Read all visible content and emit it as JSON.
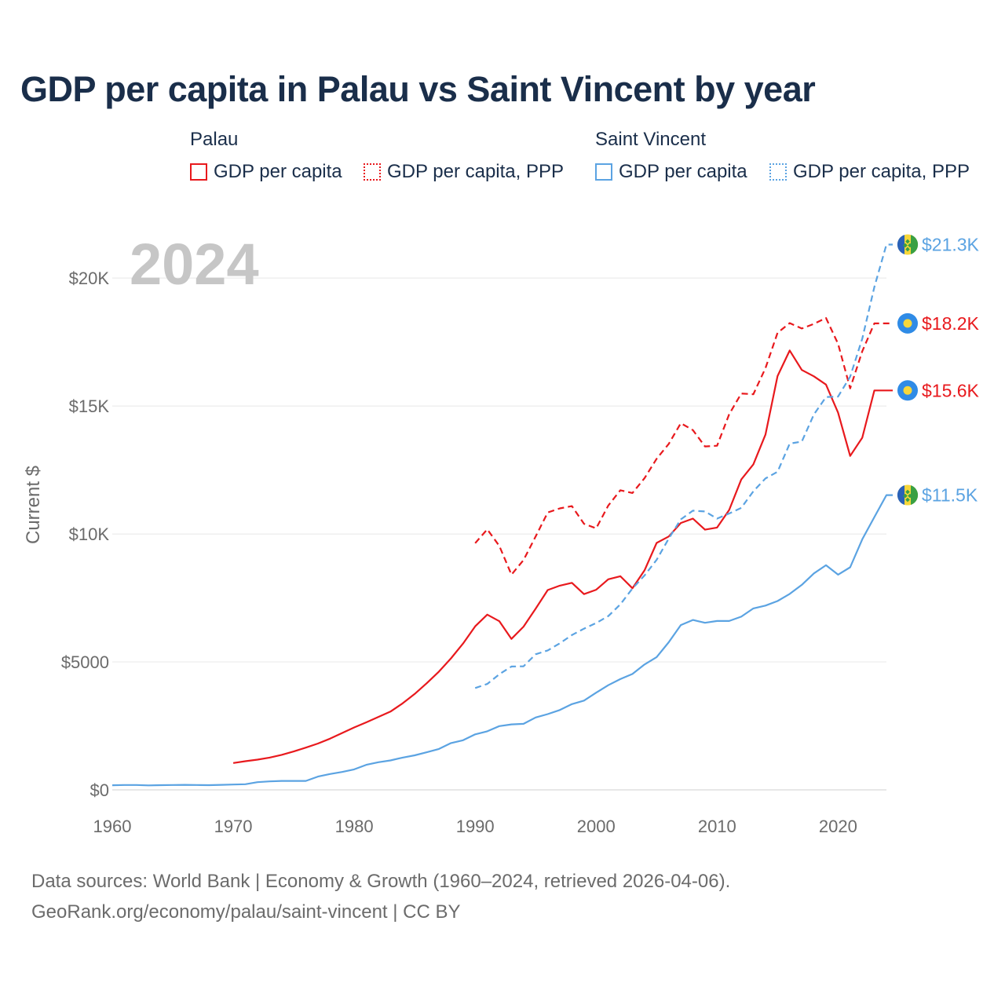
{
  "chart_data": {
    "type": "line",
    "title": "GDP per capita in Palau vs Saint Vincent by year",
    "year_badge": "2024",
    "ylabel": "Current $",
    "xlabel": "",
    "xlim": [
      1960,
      2024
    ],
    "ylim": [
      0,
      22000
    ],
    "x_ticks": [
      1960,
      1970,
      1980,
      1990,
      2000,
      2010,
      2020
    ],
    "y_ticks": [
      {
        "value": 0,
        "label": "$0"
      },
      {
        "value": 5000,
        "label": "$5000"
      },
      {
        "value": 10000,
        "label": "$10K"
      },
      {
        "value": 15000,
        "label": "$15K"
      },
      {
        "value": 20000,
        "label": "$20K"
      }
    ],
    "legend": {
      "groups": [
        {
          "name": "Palau",
          "items": [
            "GDP per capita",
            "GDP per capita, PPP"
          ]
        },
        {
          "name": "Saint Vincent",
          "items": [
            "GDP per capita",
            "GDP per capita, PPP"
          ]
        }
      ]
    },
    "colors": {
      "palau": "#e8191d",
      "saint_vincent": "#5ba3e2",
      "palau_flag_bg": "#2f8be6",
      "palau_flag_disc": "#f7d73a"
    },
    "series": [
      {
        "name": "Palau GDP per capita",
        "country": "palau",
        "style": "solid",
        "end_label": "$15.6K",
        "x": [
          1970,
          1971,
          1972,
          1973,
          1974,
          1975,
          1976,
          1977,
          1978,
          1979,
          1980,
          1981,
          1982,
          1983,
          1984,
          1985,
          1986,
          1987,
          1988,
          1989,
          1990,
          1991,
          1992,
          1993,
          1994,
          1995,
          1996,
          1997,
          1998,
          1999,
          2000,
          2001,
          2002,
          2003,
          2004,
          2005,
          2006,
          2007,
          2008,
          2009,
          2010,
          2011,
          2012,
          2013,
          2014,
          2015,
          2016,
          2017,
          2018,
          2019,
          2020,
          2021,
          2022,
          2023,
          2024
        ],
        "values": [
          1050,
          1120,
          1180,
          1260,
          1370,
          1500,
          1650,
          1810,
          2000,
          2220,
          2440,
          2640,
          2850,
          3060,
          3380,
          3750,
          4170,
          4620,
          5140,
          5720,
          6390,
          6850,
          6590,
          5900,
          6380,
          7080,
          7810,
          7980,
          8090,
          7650,
          7820,
          8230,
          8350,
          7880,
          8580,
          9650,
          9900,
          10430,
          10600,
          10170,
          10250,
          10940,
          12130,
          12720,
          13880,
          16170,
          17170,
          16410,
          16160,
          15840,
          14740,
          13050,
          13760,
          15610,
          15610
        ]
      },
      {
        "name": "Palau GDP per capita, PPP",
        "country": "palau",
        "style": "dashed",
        "end_label": "$18.2K",
        "x": [
          1990,
          1991,
          1992,
          1993,
          1994,
          1995,
          1996,
          1997,
          1998,
          1999,
          2000,
          2001,
          2002,
          2003,
          2004,
          2005,
          2006,
          2007,
          2008,
          2009,
          2010,
          2011,
          2012,
          2013,
          2014,
          2015,
          2016,
          2017,
          2018,
          2019,
          2020,
          2021,
          2022,
          2023,
          2024
        ],
        "values": [
          9640,
          10180,
          9530,
          8410,
          8980,
          9900,
          10840,
          11000,
          11090,
          10400,
          10220,
          11110,
          11710,
          11600,
          12180,
          12940,
          13520,
          14330,
          14060,
          13420,
          13450,
          14680,
          15490,
          15460,
          16480,
          17860,
          18240,
          18030,
          18210,
          18440,
          17430,
          15690,
          17140,
          18230,
          18230
        ]
      },
      {
        "name": "Saint Vincent GDP per capita",
        "country": "saint_vincent",
        "style": "solid",
        "end_label": "$11.5K",
        "x": [
          1960,
          1961,
          1962,
          1963,
          1964,
          1965,
          1966,
          1967,
          1968,
          1969,
          1970,
          1971,
          1972,
          1973,
          1974,
          1975,
          1976,
          1977,
          1978,
          1979,
          1980,
          1981,
          1982,
          1983,
          1984,
          1985,
          1986,
          1987,
          1988,
          1989,
          1990,
          1991,
          1992,
          1993,
          1994,
          1995,
          1996,
          1997,
          1998,
          1999,
          2000,
          2001,
          2002,
          2003,
          2004,
          2005,
          2006,
          2007,
          2008,
          2009,
          2010,
          2011,
          2012,
          2013,
          2014,
          2015,
          2016,
          2017,
          2018,
          2019,
          2020,
          2021,
          2022,
          2023,
          2024
        ],
        "values": [
          180,
          190,
          190,
          175,
          185,
          190,
          195,
          190,
          185,
          195,
          210,
          220,
          300,
          330,
          350,
          350,
          350,
          520,
          620,
          700,
          800,
          980,
          1080,
          1150,
          1260,
          1350,
          1470,
          1600,
          1830,
          1940,
          2170,
          2290,
          2490,
          2560,
          2580,
          2830,
          2960,
          3120,
          3350,
          3490,
          3800,
          4090,
          4330,
          4530,
          4900,
          5190,
          5770,
          6440,
          6640,
          6530,
          6600,
          6600,
          6770,
          7090,
          7200,
          7380,
          7660,
          8010,
          8460,
          8780,
          8410,
          8700,
          9790,
          10660,
          11520
        ]
      },
      {
        "name": "Saint Vincent GDP per capita, PPP",
        "country": "saint_vincent",
        "style": "dashed",
        "end_label": "$21.3K",
        "x": [
          1990,
          1991,
          1992,
          1993,
          1994,
          1995,
          1996,
          1997,
          1998,
          1999,
          2000,
          2001,
          2002,
          2003,
          2004,
          2005,
          2006,
          2007,
          2008,
          2009,
          2010,
          2011,
          2012,
          2013,
          2014,
          2015,
          2016,
          2017,
          2018,
          2019,
          2020,
          2021,
          2022,
          2023,
          2024
        ],
        "values": [
          3980,
          4140,
          4520,
          4820,
          4830,
          5300,
          5450,
          5730,
          6050,
          6300,
          6520,
          6790,
          7250,
          7870,
          8380,
          8990,
          9820,
          10570,
          10910,
          10880,
          10600,
          10800,
          11020,
          11670,
          12170,
          12430,
          13530,
          13610,
          14670,
          15350,
          15370,
          16150,
          17630,
          19650,
          21310
        ]
      }
    ],
    "footer": {
      "line1": "Data sources: World Bank | Economy & Growth (1960–2024, retrieved 2026-04-06).",
      "line2": "GeoRank.org/economy/palau/saint-vincent | CC BY"
    }
  }
}
